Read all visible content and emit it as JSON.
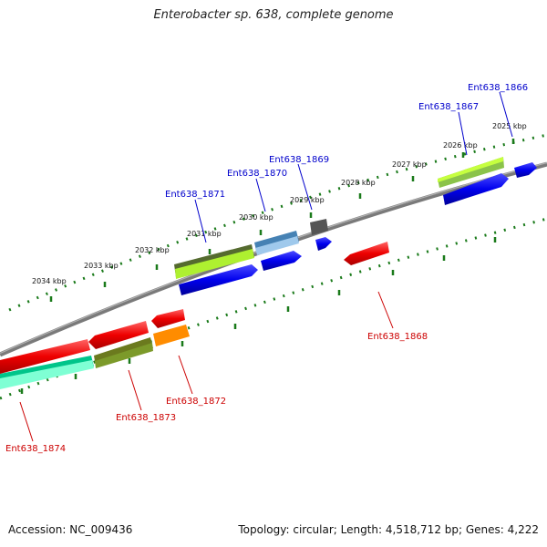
{
  "title": "Enterobacter sp. 638, complete genome",
  "accession": "Accession: NC_009436",
  "summary": "Topology: circular; Length: 4,518,712 bp; Genes: 4,222",
  "scale_labels": [
    "2025 kbp",
    "2026 kbp",
    "2027 kbp",
    "2028 kbp",
    "2029 kbp",
    "2030 kbp",
    "2031 kbp",
    "2032 kbp",
    "2033 kbp",
    "2034 kbp"
  ],
  "genes_top": [
    {
      "name": "Ent638_1866",
      "color": "#0000cc"
    },
    {
      "name": "Ent638_1867",
      "color": "#0000cc"
    },
    {
      "name": "Ent638_1869",
      "color": "#0000cc"
    },
    {
      "name": "Ent638_1870",
      "color": "#0000cc"
    },
    {
      "name": "Ent638_1871",
      "color": "#0000cc"
    }
  ],
  "genes_bottom": [
    {
      "name": "Ent638_1868",
      "color": "#cc0000"
    },
    {
      "name": "Ent638_1872",
      "color": "#cc0000"
    },
    {
      "name": "Ent638_1873",
      "color": "#cc0000"
    },
    {
      "name": "Ent638_1874",
      "color": "#cc0000"
    }
  ],
  "colors": {
    "backbone": "#808080",
    "tick": "#1a7a1a",
    "forward_cds": "#0000ee",
    "reverse_cds": "#ee0000",
    "olive": "#6b8e23",
    "lime": "#adff2f",
    "steelblue": "#4682b4",
    "grey": "#555555",
    "orange": "#ff8c00",
    "aquamarine": "#00e5a0"
  }
}
